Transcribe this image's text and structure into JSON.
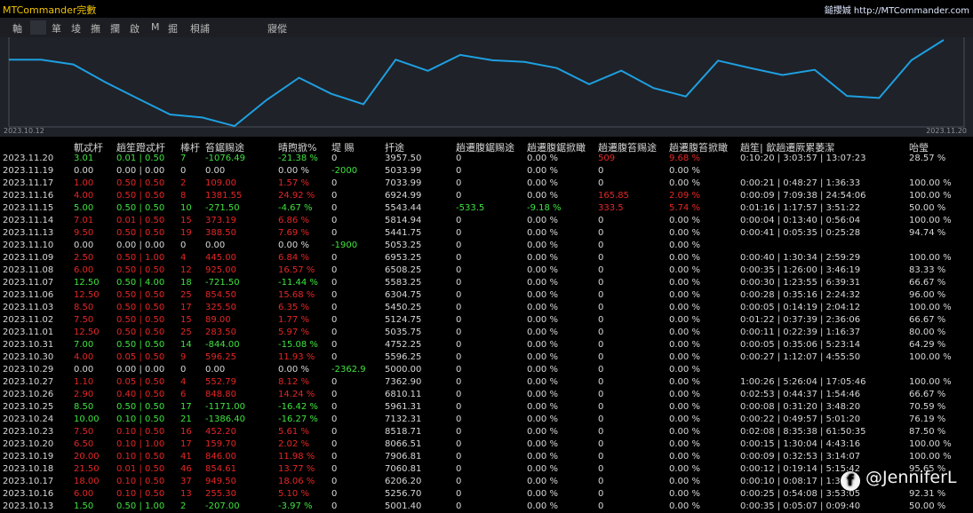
{
  "app": {
    "title": "MTCommander完數",
    "site_prefix": "鎚攖娍",
    "site_url": "http://MTCommander.com"
  },
  "menu": [
    "軸",
    "箪",
    "堎",
    "撫",
    "攔",
    "啟",
    "M",
    "掘",
    "梖誧",
    "寢傱"
  ],
  "chart": {
    "type": "line",
    "color": "#1e9fe0",
    "start_label": "2023.10.12",
    "end_label": "2023.11.20",
    "x": [
      "2023.10.12",
      "2023.10.13",
      "2023.10.16",
      "2023.10.17",
      "2023.10.18",
      "2023.10.19",
      "2023.10.20",
      "2023.10.23",
      "2023.10.24",
      "2023.10.25",
      "2023.10.26",
      "2023.10.27",
      "2023.10.29",
      "2023.10.30",
      "2023.10.31",
      "2023.11.01",
      "2023.11.02",
      "2023.11.03",
      "2023.11.06",
      "2023.11.07",
      "2023.11.08",
      "2023.11.09",
      "2023.11.10",
      "2023.11.13",
      "2023.11.14",
      "2023.11.15",
      "2023.11.16",
      "2023.11.17",
      "2023.11.19",
      "2023.11.20"
    ],
    "values": [
      5000,
      5001,
      5257,
      6206,
      7061,
      7907,
      8067,
      8519,
      7132,
      5961,
      6810,
      7363,
      5000,
      5596,
      4752,
      5036,
      5125,
      5450,
      6305,
      5583,
      6508,
      6953,
      5053,
      5442,
      5815,
      5543,
      6925,
      7034,
      5034,
      3958
    ]
  },
  "columns": [
    "軏忒杅",
    "趟笙蹬忒杅",
    "棒杅",
    "笞鋸赐途",
    "晴煦掀%",
    "堤 赐",
    "扦途",
    "趟遷腹鋸赐途",
    "趟遷腹鋸掀瞰",
    "趟遷腹笞赐途",
    "趟遷腹笞掀瞰",
    "趟笙| 歙趟遷厥累萎潔",
    "咍瑩"
  ],
  "rows": [
    {
      "date": "2023.11.20",
      "lots": "3.01",
      "lot_range": "0.01 | 0.50",
      "trades": "7",
      "profit": "-1076.49",
      "pct": "-21.38 %",
      "deposit": "0",
      "balance": "3957.50",
      "dd_amount": "0",
      "dd_pct": "0.00 %",
      "mae_amount": "509",
      "mae_pct": "9.68 %",
      "duration": "0:10:20 | 3:03:57 | 13:07:23",
      "win": "28.57 %",
      "color": "g"
    },
    {
      "date": "2023.11.19",
      "lots": "0.00",
      "lot_range": "0.00 | 0.00",
      "trades": "0",
      "profit": "0.00",
      "pct": "0.00 %",
      "deposit": "-2000",
      "balance": "5033.99",
      "dd_amount": "0",
      "dd_pct": "0.00 %",
      "mae_amount": "0",
      "mae_pct": "0.00 %",
      "duration": "",
      "win": "",
      "color": "w"
    },
    {
      "date": "2023.11.17",
      "lots": "1.00",
      "lot_range": "0.50 | 0.50",
      "trades": "2",
      "profit": "109.00",
      "pct": "1.57 %",
      "deposit": "0",
      "balance": "7033.99",
      "dd_amount": "0",
      "dd_pct": "0.00 %",
      "mae_amount": "0",
      "mae_pct": "0.00 %",
      "duration": "0:00:21 | 0:48:27 | 1:36:33",
      "win": "100.00 %",
      "color": "r"
    },
    {
      "date": "2023.11.16",
      "lots": "4.00",
      "lot_range": "0.50 | 0.50",
      "trades": "8",
      "profit": "1381.55",
      "pct": "24.92 %",
      "deposit": "0",
      "balance": "6924.99",
      "dd_amount": "0",
      "dd_pct": "0.00 %",
      "mae_amount": "165.85",
      "mae_pct": "2.09 %",
      "duration": "0:00:09 | 7:09:38 | 24:54:06",
      "win": "100.00 %",
      "color": "r"
    },
    {
      "date": "2023.11.15",
      "lots": "5.00",
      "lot_range": "0.50 | 0.50",
      "trades": "10",
      "profit": "-271.50",
      "pct": "-4.67 %",
      "deposit": "0",
      "balance": "5543.44",
      "dd_amount": "-533.5",
      "dd_pct": "-9.18 %",
      "mae_amount": "333.5",
      "mae_pct": "5.74 %",
      "duration": "0:01:16 | 1:17:57 | 3:51:22",
      "win": "50.00 %",
      "color": "g"
    },
    {
      "date": "2023.11.14",
      "lots": "7.01",
      "lot_range": "0.01 | 0.50",
      "trades": "15",
      "profit": "373.19",
      "pct": "6.86 %",
      "deposit": "0",
      "balance": "5814.94",
      "dd_amount": "0",
      "dd_pct": "0.00 %",
      "mae_amount": "0",
      "mae_pct": "0.00 %",
      "duration": "0:00:04 | 0:13:40 | 0:56:04",
      "win": "100.00 %",
      "color": "r"
    },
    {
      "date": "2023.11.13",
      "lots": "9.50",
      "lot_range": "0.50 | 0.50",
      "trades": "19",
      "profit": "388.50",
      "pct": "7.69 %",
      "deposit": "0",
      "balance": "5441.75",
      "dd_amount": "0",
      "dd_pct": "0.00 %",
      "mae_amount": "0",
      "mae_pct": "0.00 %",
      "duration": "0:00:41 | 0:05:35 | 0:25:28",
      "win": "94.74 %",
      "color": "r"
    },
    {
      "date": "2023.11.10",
      "lots": "0.00",
      "lot_range": "0.00 | 0.00",
      "trades": "0",
      "profit": "0.00",
      "pct": "0.00 %",
      "deposit": "-1900",
      "balance": "5053.25",
      "dd_amount": "0",
      "dd_pct": "0.00 %",
      "mae_amount": "0",
      "mae_pct": "0.00 %",
      "duration": "",
      "win": "",
      "color": "w"
    },
    {
      "date": "2023.11.09",
      "lots": "2.50",
      "lot_range": "0.50 | 1.00",
      "trades": "4",
      "profit": "445.00",
      "pct": "6.84 %",
      "deposit": "0",
      "balance": "6953.25",
      "dd_amount": "0",
      "dd_pct": "0.00 %",
      "mae_amount": "0",
      "mae_pct": "0.00 %",
      "duration": "0:00:40 | 1:30:34 | 2:59:29",
      "win": "100.00 %",
      "color": "r"
    },
    {
      "date": "2023.11.08",
      "lots": "6.00",
      "lot_range": "0.50 | 0.50",
      "trades": "12",
      "profit": "925.00",
      "pct": "16.57 %",
      "deposit": "0",
      "balance": "6508.25",
      "dd_amount": "0",
      "dd_pct": "0.00 %",
      "mae_amount": "0",
      "mae_pct": "0.00 %",
      "duration": "0:00:35 | 1:26:00 | 3:46:19",
      "win": "83.33 %",
      "color": "r"
    },
    {
      "date": "2023.11.07",
      "lots": "12.50",
      "lot_range": "0.50 | 4.00",
      "trades": "18",
      "profit": "-721.50",
      "pct": "-11.44 %",
      "deposit": "0",
      "balance": "5583.25",
      "dd_amount": "0",
      "dd_pct": "0.00 %",
      "mae_amount": "0",
      "mae_pct": "0.00 %",
      "duration": "0:00:30 | 1:23:55 | 6:39:31",
      "win": "66.67 %",
      "color": "g"
    },
    {
      "date": "2023.11.06",
      "lots": "12.50",
      "lot_range": "0.50 | 0.50",
      "trades": "25",
      "profit": "854.50",
      "pct": "15.68 %",
      "deposit": "0",
      "balance": "6304.75",
      "dd_amount": "0",
      "dd_pct": "0.00 %",
      "mae_amount": "0",
      "mae_pct": "0.00 %",
      "duration": "0:00:28 | 0:35:16 | 2:24:32",
      "win": "96.00 %",
      "color": "r"
    },
    {
      "date": "2023.11.03",
      "lots": "8.50",
      "lot_range": "0.50 | 0.50",
      "trades": "17",
      "profit": "325.50",
      "pct": "6.35 %",
      "deposit": "0",
      "balance": "5450.25",
      "dd_amount": "0",
      "dd_pct": "0.00 %",
      "mae_amount": "0",
      "mae_pct": "0.00 %",
      "duration": "0:00:05 | 0:14:19 | 2:04:12",
      "win": "100.00 %",
      "color": "r"
    },
    {
      "date": "2023.11.02",
      "lots": "7.50",
      "lot_range": "0.50 | 0.50",
      "trades": "15",
      "profit": "89.00",
      "pct": "1.77 %",
      "deposit": "0",
      "balance": "5124.75",
      "dd_amount": "0",
      "dd_pct": "0.00 %",
      "mae_amount": "0",
      "mae_pct": "0.00 %",
      "duration": "0:01:22 | 0:37:39 | 2:36:06",
      "win": "66.67 %",
      "color": "r"
    },
    {
      "date": "2023.11.01",
      "lots": "12.50",
      "lot_range": "0.50 | 0.50",
      "trades": "25",
      "profit": "283.50",
      "pct": "5.97 %",
      "deposit": "0",
      "balance": "5035.75",
      "dd_amount": "0",
      "dd_pct": "0.00 %",
      "mae_amount": "0",
      "mae_pct": "0.00 %",
      "duration": "0:00:11 | 0:22:39 | 1:16:37",
      "win": "80.00 %",
      "color": "r"
    },
    {
      "date": "2023.10.31",
      "lots": "7.00",
      "lot_range": "0.50 | 0.50",
      "trades": "14",
      "profit": "-844.00",
      "pct": "-15.08 %",
      "deposit": "0",
      "balance": "4752.25",
      "dd_amount": "0",
      "dd_pct": "0.00 %",
      "mae_amount": "0",
      "mae_pct": "0.00 %",
      "duration": "0:00:05 | 0:35:06 | 5:23:14",
      "win": "64.29 %",
      "color": "g"
    },
    {
      "date": "2023.10.30",
      "lots": "4.00",
      "lot_range": "0.05 | 0.50",
      "trades": "9",
      "profit": "596.25",
      "pct": "11.93 %",
      "deposit": "0",
      "balance": "5596.25",
      "dd_amount": "0",
      "dd_pct": "0.00 %",
      "mae_amount": "0",
      "mae_pct": "0.00 %",
      "duration": "0:00:27 | 1:12:07 | 4:55:50",
      "win": "100.00 %",
      "color": "r"
    },
    {
      "date": "2023.10.29",
      "lots": "0.00",
      "lot_range": "0.00 | 0.00",
      "trades": "0",
      "profit": "0.00",
      "pct": "0.00 %",
      "deposit": "-2362.9",
      "balance": "5000.00",
      "dd_amount": "0",
      "dd_pct": "0.00 %",
      "mae_amount": "0",
      "mae_pct": "0.00 %",
      "duration": "",
      "win": "",
      "color": "w"
    },
    {
      "date": "2023.10.27",
      "lots": "1.10",
      "lot_range": "0.05 | 0.50",
      "trades": "4",
      "profit": "552.79",
      "pct": "8.12 %",
      "deposit": "0",
      "balance": "7362.90",
      "dd_amount": "0",
      "dd_pct": "0.00 %",
      "mae_amount": "0",
      "mae_pct": "0.00 %",
      "duration": "1:00:26 | 5:26:04 | 17:05:46",
      "win": "100.00 %",
      "color": "r"
    },
    {
      "date": "2023.10.26",
      "lots": "2.90",
      "lot_range": "0.40 | 0.50",
      "trades": "6",
      "profit": "848.80",
      "pct": "14.24 %",
      "deposit": "0",
      "balance": "6810.11",
      "dd_amount": "0",
      "dd_pct": "0.00 %",
      "mae_amount": "0",
      "mae_pct": "0.00 %",
      "duration": "0:02:53 | 0:44:37 | 1:54:46",
      "win": "66.67 %",
      "color": "r"
    },
    {
      "date": "2023.10.25",
      "lots": "8.50",
      "lot_range": "0.50 | 0.50",
      "trades": "17",
      "profit": "-1171.00",
      "pct": "-16.42 %",
      "deposit": "0",
      "balance": "5961.31",
      "dd_amount": "0",
      "dd_pct": "0.00 %",
      "mae_amount": "0",
      "mae_pct": "0.00 %",
      "duration": "0:00:08 | 0:31:20 | 3:48:20",
      "win": "70.59 %",
      "color": "g"
    },
    {
      "date": "2023.10.24",
      "lots": "10.00",
      "lot_range": "0.10 | 0.50",
      "trades": "21",
      "profit": "-1386.40",
      "pct": "-16.27 %",
      "deposit": "0",
      "balance": "7132.31",
      "dd_amount": "0",
      "dd_pct": "0.00 %",
      "mae_amount": "0",
      "mae_pct": "0.00 %",
      "duration": "0:00:22 | 0:49:57 | 5:01:20",
      "win": "76.19 %",
      "color": "g"
    },
    {
      "date": "2023.10.23",
      "lots": "7.50",
      "lot_range": "0.10 | 0.50",
      "trades": "16",
      "profit": "452.20",
      "pct": "5.61 %",
      "deposit": "0",
      "balance": "8518.71",
      "dd_amount": "0",
      "dd_pct": "0.00 %",
      "mae_amount": "0",
      "mae_pct": "0.00 %",
      "duration": "0:02:08 | 8:35:38 | 61:50:35",
      "win": "87.50 %",
      "color": "r"
    },
    {
      "date": "2023.10.20",
      "lots": "6.50",
      "lot_range": "0.10 | 1.00",
      "trades": "17",
      "profit": "159.70",
      "pct": "2.02 %",
      "deposit": "0",
      "balance": "8066.51",
      "dd_amount": "0",
      "dd_pct": "0.00 %",
      "mae_amount": "0",
      "mae_pct": "0.00 %",
      "duration": "0:00:15 | 1:30:04 | 4:43:16",
      "win": "100.00 %",
      "color": "r"
    },
    {
      "date": "2023.10.19",
      "lots": "20.00",
      "lot_range": "0.10 | 0.50",
      "trades": "41",
      "profit": "846.00",
      "pct": "11.98 %",
      "deposit": "0",
      "balance": "7906.81",
      "dd_amount": "0",
      "dd_pct": "0.00 %",
      "mae_amount": "0",
      "mae_pct": "0.00 %",
      "duration": "0:00:09 | 0:32:53 | 3:14:07",
      "win": "100.00 %",
      "color": "r"
    },
    {
      "date": "2023.10.18",
      "lots": "21.50",
      "lot_range": "0.01 | 0.50",
      "trades": "46",
      "profit": "854.61",
      "pct": "13.77 %",
      "deposit": "0",
      "balance": "7060.81",
      "dd_amount": "0",
      "dd_pct": "0.00 %",
      "mae_amount": "0",
      "mae_pct": "0.00 %",
      "duration": "0:00:12 | 0:19:14 | 5:15:42",
      "win": "95.65 %",
      "color": "r"
    },
    {
      "date": "2023.10.17",
      "lots": "18.00",
      "lot_range": "0.10 | 0.50",
      "trades": "37",
      "profit": "949.50",
      "pct": "18.06 %",
      "deposit": "0",
      "balance": "6206.20",
      "dd_amount": "0",
      "dd_pct": "0.00 %",
      "mae_amount": "0",
      "mae_pct": "0.00 %",
      "duration": "0:00:10 | 0:08:17 | 1:35:45",
      "win": "",
      "color": "r"
    },
    {
      "date": "2023.10.16",
      "lots": "6.00",
      "lot_range": "0.10 | 0.50",
      "trades": "13",
      "profit": "255.30",
      "pct": "5.10 %",
      "deposit": "0",
      "balance": "5256.70",
      "dd_amount": "0",
      "dd_pct": "0.00 %",
      "mae_amount": "0",
      "mae_pct": "0.00 %",
      "duration": "0:00:25 | 0:54:08 | 3:53:05",
      "win": "92.31 %",
      "color": "r"
    },
    {
      "date": "2023.10.13",
      "lots": "1.50",
      "lot_range": "0.50 | 1.00",
      "trades": "2",
      "profit": "-207.00",
      "pct": "-3.97 %",
      "deposit": "0",
      "balance": "5001.40",
      "dd_amount": "0",
      "dd_pct": "0.00 %",
      "mae_amount": "0",
      "mae_pct": "0.00 %",
      "duration": "0:00:35 | 0:05:07 | 0:09:40",
      "win": "50.00 %",
      "color": "g"
    }
  ],
  "watermark": {
    "icon_label": "f",
    "handle": "@JenniferL"
  }
}
